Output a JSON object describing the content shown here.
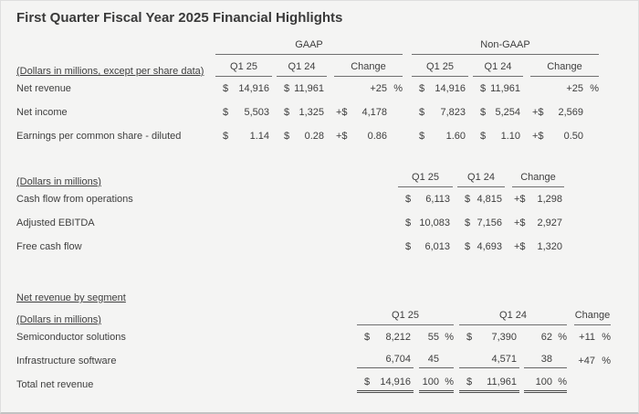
{
  "title": "First Quarter Fiscal Year 2025 Financial Highlights",
  "columns": {
    "q1_25": "Q1 25",
    "q1_24": "Q1 24",
    "change": "Change"
  },
  "consolidated": {
    "note": "(Dollars in millions, except per share data)",
    "gaap_label": "GAAP",
    "non_gaap_label": "Non-GAAP",
    "rows": [
      {
        "label": "Net revenue",
        "gaap": {
          "d1": "$",
          "v1": "14,916",
          "d2": "$",
          "v2": "11,961",
          "cp": "",
          "cv": "+25",
          "cs": "%"
        },
        "non_gaap": {
          "d1": "$",
          "v1": "14,916",
          "d2": "$",
          "v2": "11,961",
          "cp": "",
          "cv": "+25",
          "cs": "%"
        }
      },
      {
        "label": "Net income",
        "gaap": {
          "d1": "$",
          "v1": "5,503",
          "d2": "$",
          "v2": "1,325",
          "cp": "+$",
          "cv": "4,178",
          "cs": ""
        },
        "non_gaap": {
          "d1": "$",
          "v1": "7,823",
          "d2": "$",
          "v2": "5,254",
          "cp": "+$",
          "cv": "2,569",
          "cs": ""
        }
      },
      {
        "label": "Earnings per common share - diluted",
        "gaap": {
          "d1": "$",
          "v1": "1.14",
          "d2": "$",
          "v2": "0.28",
          "cp": "+$",
          "cv": "0.86",
          "cs": ""
        },
        "non_gaap": {
          "d1": "$",
          "v1": "1.60",
          "d2": "$",
          "v2": "1.10",
          "cp": "+$",
          "cv": "0.50",
          "cs": ""
        }
      }
    ]
  },
  "cash_flow": {
    "note": "(Dollars in millions)",
    "rows": [
      {
        "label": "Cash flow from operations",
        "d1": "$",
        "v1": "6,113",
        "d2": "$",
        "v2": "4,815",
        "cp": "+$",
        "cv": "1,298"
      },
      {
        "label": "Adjusted EBITDA",
        "d1": "$",
        "v1": "10,083",
        "d2": "$",
        "v2": "7,156",
        "cp": "+$",
        "cv": "2,927"
      },
      {
        "label": "Free cash flow",
        "d1": "$",
        "v1": "6,013",
        "d2": "$",
        "v2": "4,693",
        "cp": "+$",
        "cv": "1,320"
      }
    ]
  },
  "segments": {
    "title": "Net revenue by segment",
    "note": "(Dollars in millions)",
    "rows": [
      {
        "label": "Semiconductor solutions",
        "d1": "$",
        "v1": "8,212",
        "p1": "55",
        "s1": "%",
        "d2": "$",
        "v2": "7,390",
        "p2": "62",
        "s2": "%",
        "cv": "+11",
        "cs": "%"
      },
      {
        "label": "Infrastructure software",
        "d1": "",
        "v1": "6,704",
        "p1": "45",
        "s1": "",
        "d2": "",
        "v2": "4,571",
        "p2": "38",
        "s2": "",
        "cv": "+47",
        "cs": "%"
      },
      {
        "label": "Total net revenue",
        "d1": "$",
        "v1": "14,916",
        "p1": "100",
        "s1": "%",
        "d2": "$",
        "v2": "11,961",
        "p2": "100",
        "s2": "%",
        "cv": "",
        "cs": ""
      }
    ]
  }
}
